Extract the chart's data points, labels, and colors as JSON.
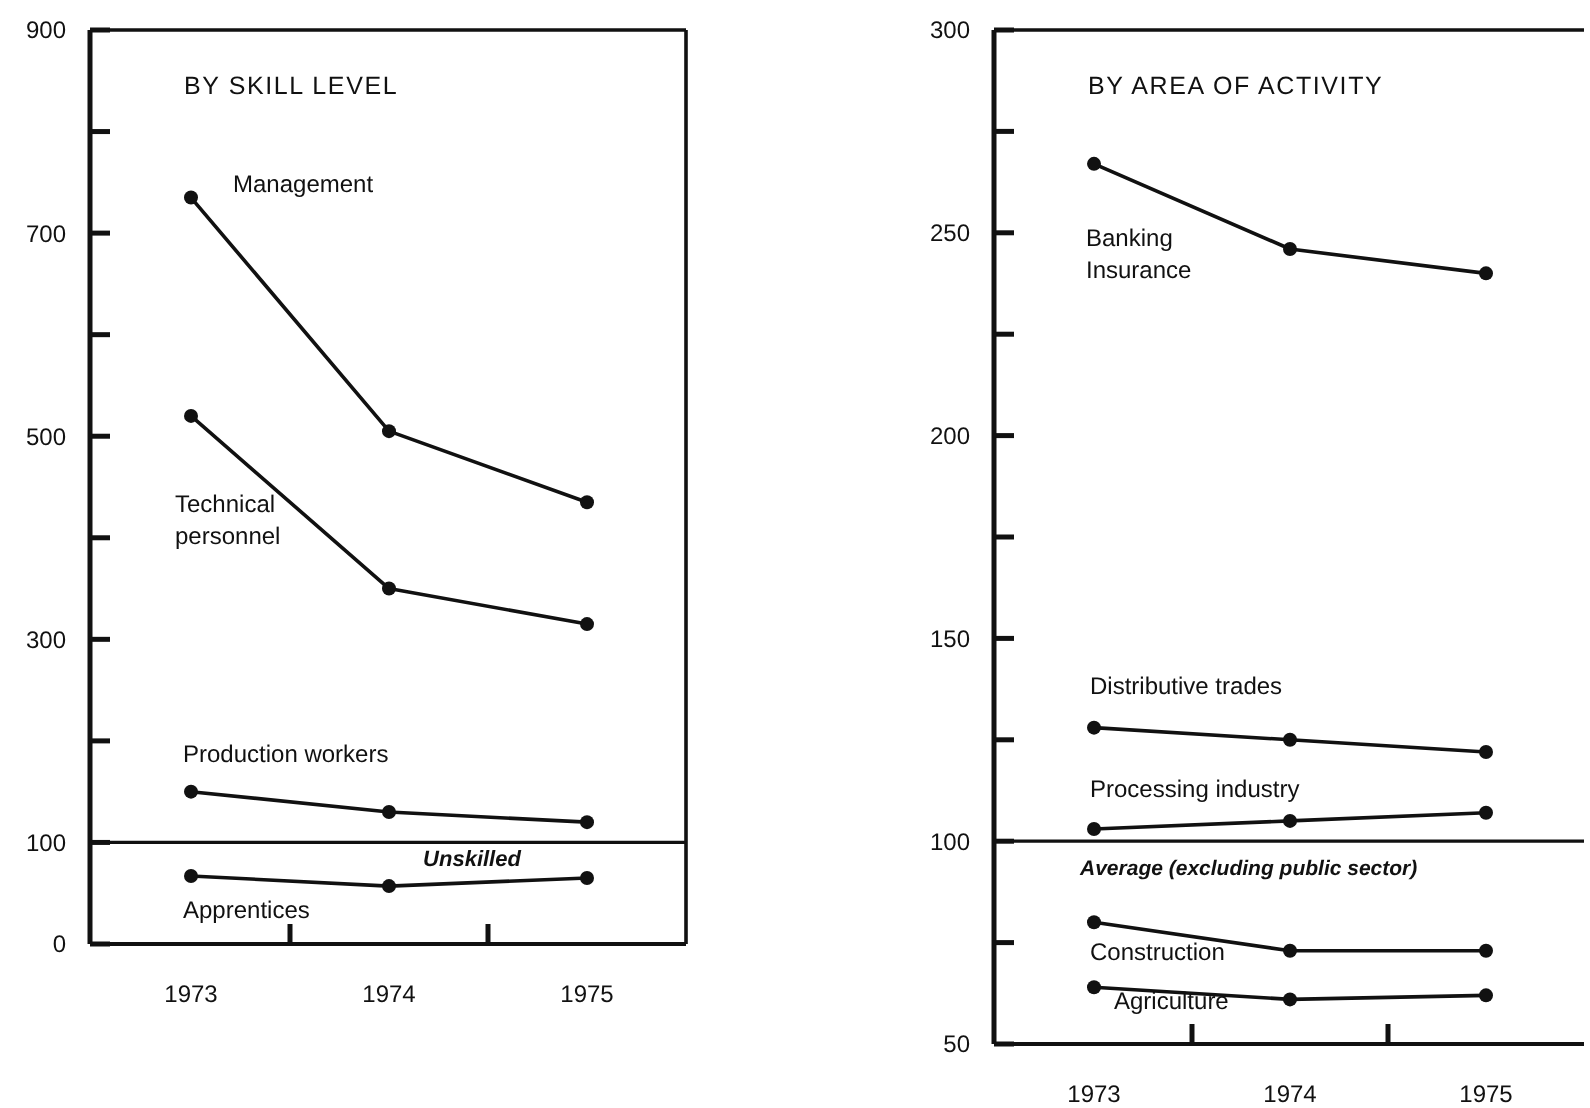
{
  "chart_data": [
    {
      "type": "line",
      "title": "BY SKILL LEVEL",
      "categories": [
        "1973",
        "1974",
        "1975"
      ],
      "ylim": [
        0,
        900
      ],
      "yticks": [
        0,
        100,
        {
          "value": 200,
          "label": null
        },
        300,
        {
          "value": 400,
          "label": null
        },
        500,
        {
          "value": 600,
          "label": null
        },
        700,
        {
          "value": 800,
          "label": null
        },
        900
      ],
      "grid": false,
      "marker": "circle",
      "line_style": "solid",
      "series": [
        {
          "name": "Management",
          "color": "#111111",
          "values": [
            735,
            505,
            435
          ]
        },
        {
          "name": "Technical personnel",
          "color": "#111111",
          "values": [
            520,
            350,
            315
          ]
        },
        {
          "name": "Production workers",
          "color": "#111111",
          "values": [
            150,
            130,
            120
          ]
        },
        {
          "name": "Apprentices",
          "color": "#111111",
          "values": [
            67,
            57,
            65
          ]
        }
      ],
      "ref_lines": [
        {
          "axis": "y",
          "value": 100
        }
      ],
      "annotations": [
        "Unskilled"
      ]
    },
    {
      "type": "line",
      "title": "BY AREA OF ACTIVITY",
      "categories": [
        "1973",
        "1974",
        "1975"
      ],
      "ylim": [
        50,
        300
      ],
      "yticks": [
        50,
        {
          "value": 75,
          "label": null
        },
        100,
        {
          "value": 125,
          "label": null
        },
        150,
        {
          "value": 175,
          "label": null
        },
        200,
        {
          "value": 225,
          "label": null
        },
        250,
        {
          "value": 275,
          "label": null
        },
        300
      ],
      "grid": false,
      "marker": "circle",
      "line_style": "solid",
      "series": [
        {
          "name": "Banking Insurance",
          "color": "#111111",
          "values": [
            267,
            246,
            240
          ]
        },
        {
          "name": "Distributive trades",
          "color": "#111111",
          "values": [
            128,
            125,
            122
          ]
        },
        {
          "name": "Processing industry",
          "color": "#111111",
          "values": [
            103,
            105,
            107
          ]
        },
        {
          "name": "Construction",
          "color": "#111111",
          "values": [
            80,
            73,
            73
          ]
        },
        {
          "name": "Agriculture",
          "color": "#111111",
          "values": [
            64,
            61,
            62
          ]
        }
      ],
      "ref_lines": [
        {
          "axis": "y",
          "value": 100,
          "label": "Average (excluding public sector)"
        }
      ]
    }
  ]
}
